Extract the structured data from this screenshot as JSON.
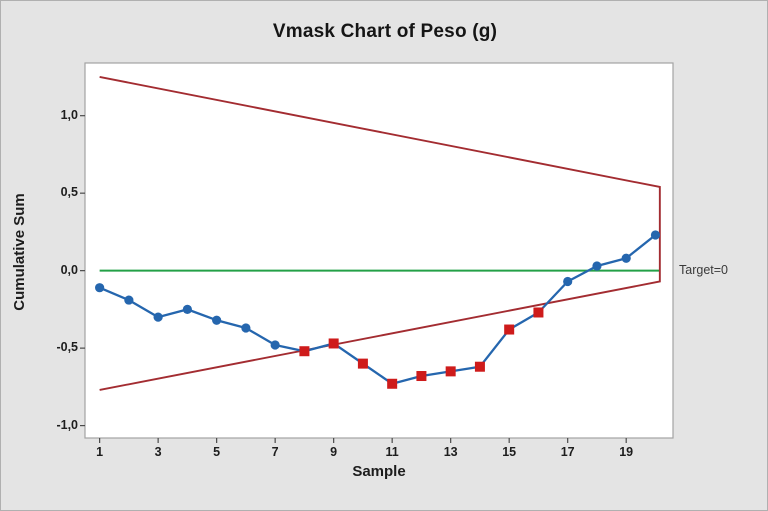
{
  "figure": {
    "background": "#e4e4e4",
    "plot_background": "#ffffff"
  },
  "chart_data": {
    "type": "line",
    "subtype": "cusum-vmask",
    "title": "Vmask Chart of Peso (g)",
    "xlabel": "Sample",
    "ylabel": "Cumulative Sum",
    "x": [
      1,
      2,
      3,
      4,
      5,
      6,
      7,
      8,
      9,
      10,
      11,
      12,
      13,
      14,
      15,
      16,
      17,
      18,
      19,
      20
    ],
    "cusum": [
      -0.11,
      -0.19,
      -0.3,
      -0.25,
      -0.32,
      -0.37,
      -0.48,
      -0.52,
      -0.47,
      -0.6,
      -0.73,
      -0.68,
      -0.65,
      -0.62,
      -0.38,
      -0.27,
      -0.07,
      0.03,
      0.08,
      0.23
    ],
    "flagged_samples": [
      8,
      9,
      10,
      11,
      12,
      13,
      14,
      15,
      16
    ],
    "x_ticks": [
      1,
      3,
      5,
      7,
      9,
      11,
      13,
      15,
      17,
      19
    ],
    "y_ticks": [
      {
        "value": 1.0,
        "label": "1,0"
      },
      {
        "value": 0.5,
        "label": "0,5"
      },
      {
        "value": 0.0,
        "label": "0,0"
      },
      {
        "value": -0.5,
        "label": "-0,5"
      },
      {
        "value": -1.0,
        "label": "-1,0"
      }
    ],
    "xlim": [
      0.5,
      20.6
    ],
    "ylim": [
      -1.08,
      1.34
    ],
    "grid": false,
    "legend_position": "none",
    "target": {
      "value": 0,
      "label": "Target=0",
      "x_start": 1,
      "x_end": 20.15
    },
    "vmask": {
      "vertex_x": 20.15,
      "upper_arm": [
        [
          1,
          1.25
        ],
        [
          20.15,
          0.54
        ]
      ],
      "lower_arm": [
        [
          1,
          -0.77
        ],
        [
          20.15,
          -0.07
        ]
      ]
    },
    "colors": {
      "series": "#2566ae",
      "flagged": "#ce1b1b",
      "vmask": "#a32c31",
      "target": "#23a047",
      "plot_border": "#a3a3a3",
      "tick": "#4a4a4a"
    }
  }
}
